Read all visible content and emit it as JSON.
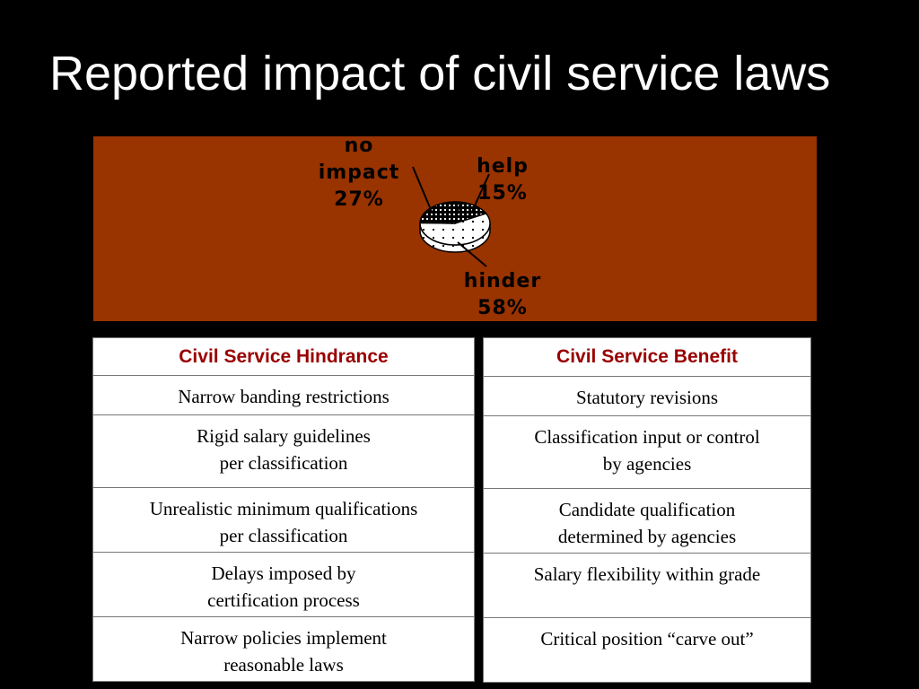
{
  "slide": {
    "title": "Reported impact of civil service laws"
  },
  "chart_data": {
    "type": "pie",
    "slices": [
      {
        "label": "help",
        "percent_label": "15%",
        "value": 15
      },
      {
        "label": "hinder",
        "percent_label": "58%",
        "value": 58
      },
      {
        "label": "no impact",
        "percent_label": "27%",
        "value": 27
      }
    ],
    "colors": {
      "panel_background": "#993300",
      "slice_fill": "#ffffff",
      "slice_pattern": "#000000"
    }
  },
  "hindrance_table": {
    "header": "Civil Service Hindrance",
    "rows": [
      "Narrow banding restrictions",
      "Rigid salary guidelines\nper classification",
      "Unrealistic minimum qualifications\nper classification",
      "Delays imposed by\ncertification process",
      "Narrow policies implement\nreasonable laws"
    ]
  },
  "benefit_table": {
    "header": "Civil Service Benefit",
    "rows": [
      "Statutory revisions",
      "Classification input or control\nby agencies",
      "Candidate qualification\ndetermined by agencies",
      "Salary flexibility within grade",
      "Critical position “carve out”"
    ]
  }
}
